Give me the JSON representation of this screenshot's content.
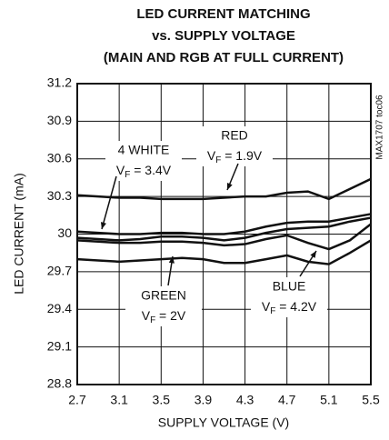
{
  "chart_data": {
    "type": "line",
    "title": [
      "LED CURRENT MATCHING",
      "vs. SUPPLY VOLTAGE",
      "(MAIN AND RGB AT FULL CURRENT)"
    ],
    "xlabel": "SUPPLY VOLTAGE (V)",
    "ylabel": "LED CURRENT (mA)",
    "side_note": "MAX1707 toc06",
    "x": [
      2.7,
      2.9,
      3.1,
      3.3,
      3.5,
      3.7,
      3.9,
      4.1,
      4.3,
      4.5,
      4.7,
      4.9,
      5.1,
      5.3,
      5.5
    ],
    "series": [
      {
        "color": "#111",
        "values": [
          30.31,
          30.3,
          30.29,
          30.29,
          30.28,
          30.28,
          30.28,
          30.29,
          30.3,
          30.3,
          30.33,
          30.34,
          30.28,
          30.36,
          30.44
        ]
      },
      {
        "color": "#111",
        "values": [
          30.02,
          30.01,
          30.0,
          30.0,
          30.01,
          30.01,
          30.0,
          30.0,
          30.02,
          30.06,
          30.09,
          30.1,
          30.1,
          30.13,
          30.16
        ]
      },
      {
        "color": "#111",
        "values": [
          29.97,
          29.96,
          29.95,
          29.96,
          29.98,
          29.98,
          29.97,
          29.95,
          29.97,
          30.01,
          30.04,
          30.05,
          30.06,
          30.1,
          30.13
        ]
      },
      {
        "color": "#111",
        "values": [
          29.95,
          29.94,
          29.93,
          29.93,
          29.94,
          29.94,
          29.93,
          29.91,
          29.92,
          29.96,
          29.99,
          29.93,
          29.88,
          29.95,
          30.08
        ]
      },
      {
        "color": "#111",
        "values": [
          29.8,
          29.79,
          29.78,
          29.79,
          29.8,
          29.81,
          29.8,
          29.77,
          29.77,
          29.8,
          29.83,
          29.78,
          29.76,
          29.85,
          29.95
        ]
      }
    ],
    "annotations": [
      {
        "name": "RED",
        "vf_prefix": "V",
        "vf_sub": "F",
        "vf_value": " = 1.9V"
      },
      {
        "name": "4 WHITE",
        "vf_prefix": "V",
        "vf_sub": "F",
        "vf_value": " = 3.4V"
      },
      {
        "name": "GREEN",
        "vf_prefix": "V",
        "vf_sub": "F",
        "vf_value": " = 2V"
      },
      {
        "name": "BLUE",
        "vf_prefix": "V",
        "vf_sub": "F",
        "vf_value": " = 4.2V"
      }
    ],
    "xlim": [
      2.7,
      5.5
    ],
    "xticks": [
      2.7,
      3.1,
      3.5,
      3.9,
      4.3,
      4.7,
      5.1,
      5.5
    ],
    "ylim": [
      28.8,
      31.2
    ],
    "yticks": [
      28.8,
      29.1,
      29.4,
      29.7,
      30.0,
      30.3,
      30.6,
      30.9,
      31.2
    ],
    "grid": true
  }
}
